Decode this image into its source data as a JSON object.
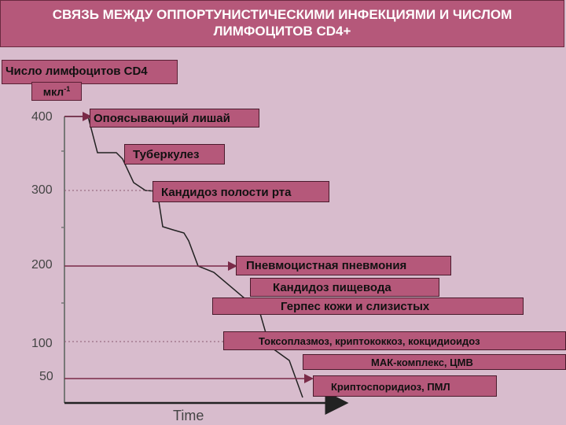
{
  "title": {
    "line1": "СВЯЗЬ МЕЖДУ ОППОРТУНИСТИЧЕСКИМИ ИНФЕКЦИЯМИ И ЧИСЛОМ",
    "line2": "ЛИМФОЦИТОВ CD4+"
  },
  "y_axis": {
    "label": "Число лимфоцитов CD4",
    "unit_base": "мкл",
    "unit_exp": "-1",
    "ticks": [
      "400",
      "300",
      "200",
      "100",
      "50"
    ]
  },
  "x_axis": {
    "label": "Time"
  },
  "infections": [
    "Опоясывающий лишай",
    "Туберкулез",
    "Кандидоз полости рта",
    "Пневмоцистная пневмония",
    "Кандидоз пищевода",
    "Герпес кожи и слизистых",
    "Токсоплазмоз, криптококкоз, кокцидиоидоз",
    "МАК-комплекс, ЦМВ",
    "Криптоспоридиоз, ПМЛ"
  ],
  "colors": {
    "box": "#b5587a",
    "background": "#d8bccd",
    "arrow": "#7a2a48"
  }
}
